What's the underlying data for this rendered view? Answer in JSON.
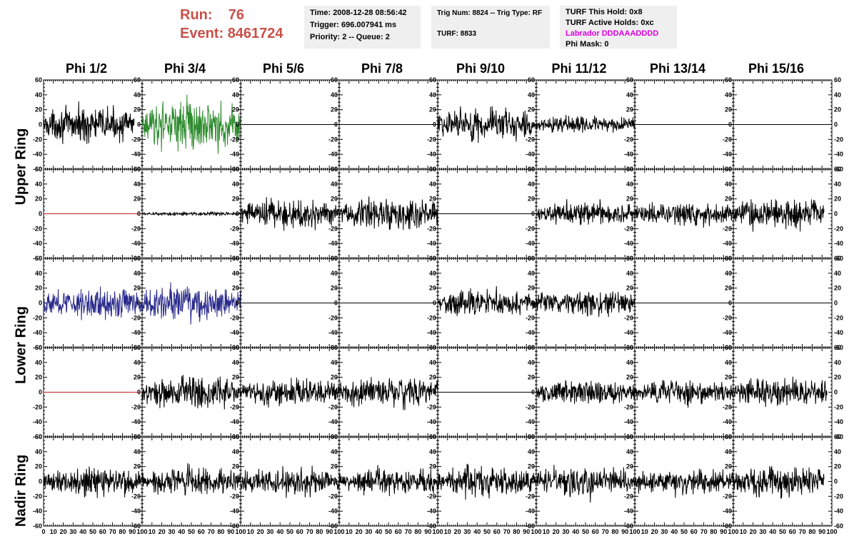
{
  "header": {
    "run_label": "Run:",
    "run_value": "76",
    "event_label": "Event:",
    "event_value": "8461724",
    "time": "Time: 2008-12-28 08:56:42",
    "trigger": "Trigger: 696.007941 ms",
    "priority": "Priority: 2 -- Queue: 2",
    "trig_num": "Trig Num: 8824 -- Trig Type: RF",
    "turf": "TURF: 8833",
    "turf_this_hold": "TURF This Hold: 0x8",
    "turf_active_holds": "TURF Active Holds: 0xc",
    "labrador": "Labrador DDDAAADDDD",
    "phi_mask": "Phi Mask: 0"
  },
  "colors": {
    "title_red": "#c9504a",
    "labrador_magenta": "#e000e0",
    "trace_black": "#000000",
    "trace_green": "#2e8b2e",
    "trace_blue": "#2a2a8c",
    "trace_red": "#c82020"
  },
  "chart_data": {
    "type": "line",
    "columns": [
      "Phi 1/2",
      "Phi 3/4",
      "Phi 5/6",
      "Phi 7/8",
      "Phi 9/10",
      "Phi 11/12",
      "Phi 13/14",
      "Phi 15/16"
    ],
    "ring_labels": [
      "Upper Ring",
      "Lower Ring",
      "Nadir Ring"
    ],
    "ylim": [
      -60,
      60
    ],
    "yticks": [
      -60,
      -40,
      -20,
      0,
      20,
      40,
      60
    ],
    "xlim": [
      0,
      100
    ],
    "xticks": [
      0,
      10,
      20,
      30,
      40,
      50,
      60,
      70,
      80,
      90,
      100
    ],
    "panels": [
      [
        {
          "amp": 18,
          "color": "trace_black",
          "end": 92
        },
        {
          "amp": 26,
          "color": "trace_green",
          "end": 100
        },
        {
          "amp": 0,
          "color": "trace_black",
          "end": 100
        },
        {
          "amp": 0,
          "color": "trace_black",
          "end": 100
        },
        {
          "amp": 18,
          "color": "trace_black",
          "end": 100
        },
        {
          "amp": 9,
          "color": "trace_black",
          "end": 100
        },
        {
          "amp": 0,
          "color": "trace_black",
          "end": 100
        },
        {
          "amp": 0,
          "color": "trace_black",
          "end": 100
        }
      ],
      [
        {
          "amp": 0,
          "color": "trace_red",
          "end": 100
        },
        {
          "amp": 2,
          "color": "trace_black",
          "end": 100
        },
        {
          "amp": 16,
          "color": "trace_black",
          "end": 100
        },
        {
          "amp": 17,
          "color": "trace_black",
          "end": 100
        },
        {
          "amp": 0,
          "color": "trace_black",
          "end": 100
        },
        {
          "amp": 12,
          "color": "trace_black",
          "end": 100
        },
        {
          "amp": 12,
          "color": "trace_black",
          "end": 100
        },
        {
          "amp": 16,
          "color": "trace_black",
          "end": 92
        }
      ],
      [
        {
          "amp": 16,
          "color": "trace_blue",
          "end": 100
        },
        {
          "amp": 18,
          "color": "trace_blue",
          "end": 100
        },
        {
          "amp": 0,
          "color": "trace_black",
          "end": 100
        },
        {
          "amp": 0,
          "color": "trace_black",
          "end": 100
        },
        {
          "amp": 14,
          "color": "trace_black",
          "end": 100
        },
        {
          "amp": 14,
          "color": "trace_black",
          "end": 100
        },
        {
          "amp": 0,
          "color": "trace_black",
          "end": 100
        },
        {
          "amp": 0,
          "color": "trace_black",
          "end": 100
        }
      ],
      [
        {
          "amp": 0,
          "color": "trace_red",
          "end": 100
        },
        {
          "amp": 18,
          "color": "trace_black",
          "end": 100
        },
        {
          "amp": 14,
          "color": "trace_black",
          "end": 100
        },
        {
          "amp": 16,
          "color": "trace_black",
          "end": 100
        },
        {
          "amp": 0,
          "color": "trace_black",
          "end": 100
        },
        {
          "amp": 12,
          "color": "trace_black",
          "end": 100
        },
        {
          "amp": 12,
          "color": "trace_black",
          "end": 100
        },
        {
          "amp": 14,
          "color": "trace_black",
          "end": 95
        }
      ],
      [
        {
          "amp": 16,
          "color": "trace_black",
          "end": 100
        },
        {
          "amp": 14,
          "color": "trace_black",
          "end": 100
        },
        {
          "amp": 14,
          "color": "trace_black",
          "end": 100
        },
        {
          "amp": 14,
          "color": "trace_black",
          "end": 100
        },
        {
          "amp": 16,
          "color": "trace_black",
          "end": 100
        },
        {
          "amp": 16,
          "color": "trace_black",
          "end": 100
        },
        {
          "amp": 14,
          "color": "trace_black",
          "end": 100
        },
        {
          "amp": 16,
          "color": "trace_black",
          "end": 92
        }
      ]
    ]
  }
}
